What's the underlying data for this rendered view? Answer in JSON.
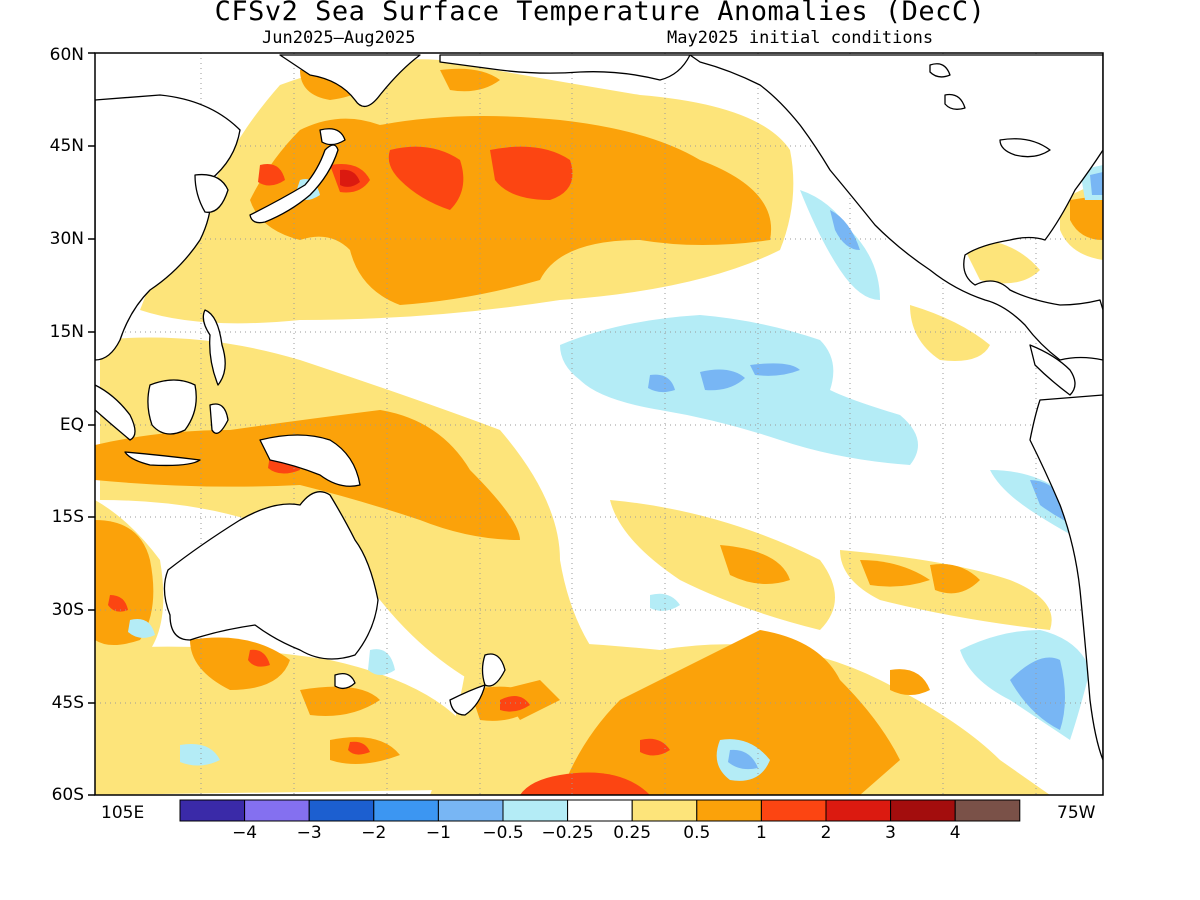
{
  "title": "CFSv2 Sea Surface Temperature Anomalies (DecC)",
  "subtitle_left": "Jun2025–Aug2025",
  "subtitle_right": "May2025 initial conditions",
  "lat_labels": [
    "60N",
    "45N",
    "30N",
    "15N",
    "EQ",
    "15S",
    "30S",
    "45S",
    "60S"
  ],
  "lon_labels": {
    "west": "105E",
    "east": "75W"
  },
  "colorbar": {
    "colors": [
      "#3a2aa8",
      "#8470f0",
      "#1c5fd0",
      "#3c96f2",
      "#78b6f4",
      "#b4ecf6",
      "#ffffff",
      "#fde47a",
      "#fba20a",
      "#fc4512",
      "#db1a10",
      "#a30d0d",
      "#7a5148"
    ],
    "labels": [
      "−4",
      "−3",
      "−2",
      "−1",
      "−0.5",
      "−0.25",
      "0.25",
      "0.5",
      "1",
      "2",
      "3",
      "4"
    ]
  }
}
